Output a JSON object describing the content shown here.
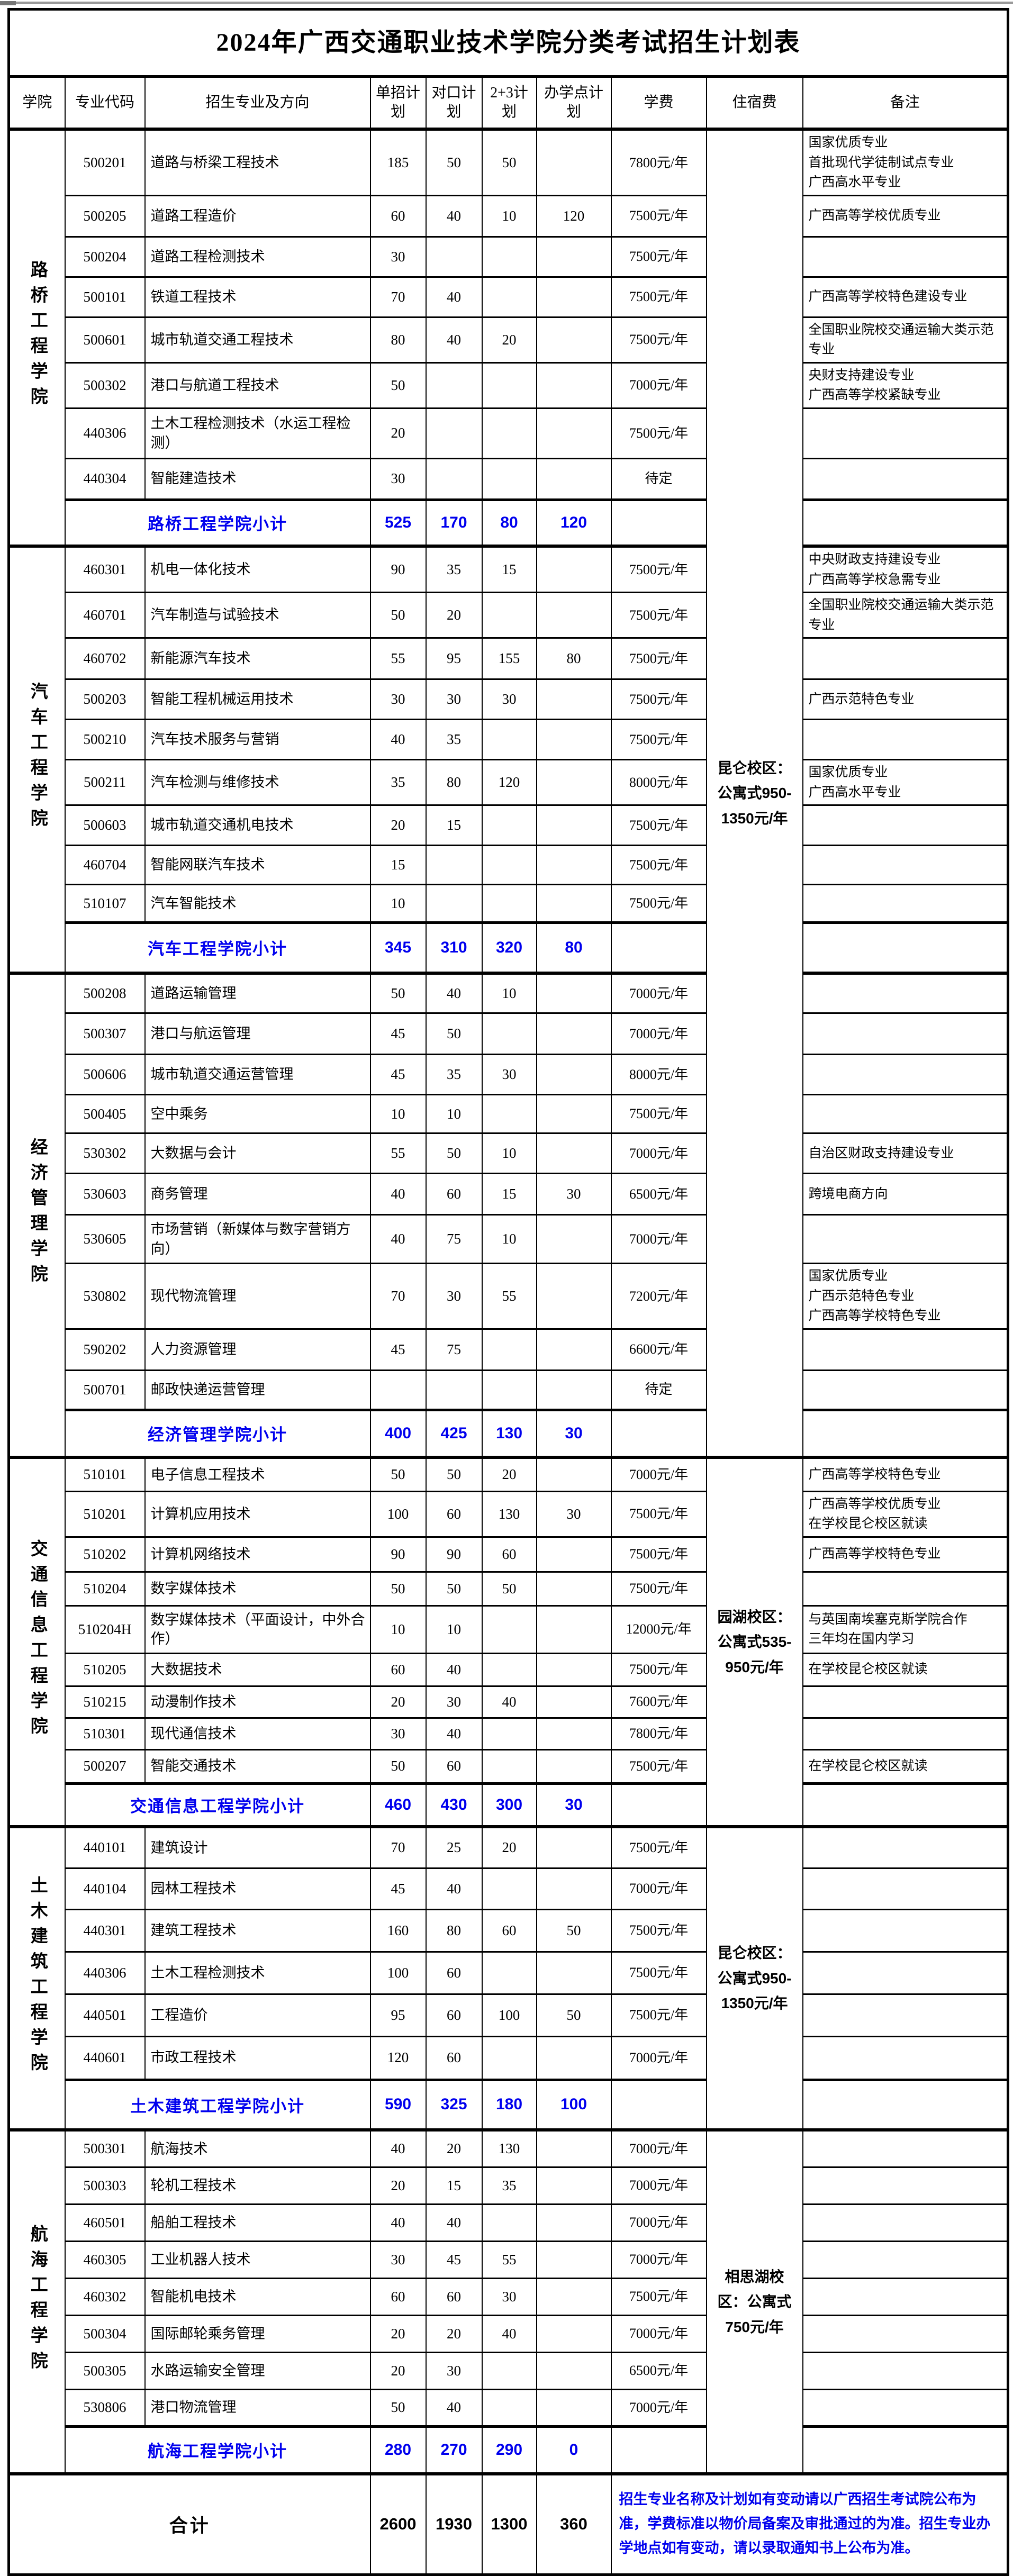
{
  "title": "2024年广西交通职业技术学院分类考试招生计划表",
  "columns": [
    "学院",
    "专业代码",
    "招生专业及方向",
    "单招计划",
    "对口计划",
    "2+3计划",
    "办学点计划",
    "学费",
    "住宿费",
    "备注"
  ],
  "colors": {
    "accent_blue": "#0000ee",
    "border_black": "#000000",
    "top_strip_gray": "#9a9a9a"
  },
  "sections": [
    {
      "college": "路桥工程学院",
      "rows": [
        {
          "code": "500201",
          "major": "道路与桥梁工程技术",
          "dz": "185",
          "dk": "50",
          "p23": "50",
          "bxd": "",
          "fee": "7800元/年",
          "remark": "国家优质专业\n首批现代学徒制试点专业\n广西高水平专业"
        },
        {
          "code": "500205",
          "major": "道路工程造价",
          "dz": "60",
          "dk": "40",
          "p23": "10",
          "bxd": "120",
          "fee": "7500元/年",
          "remark": "广西高等学校优质专业"
        },
        {
          "code": "500204",
          "major": "道路工程检测技术",
          "dz": "30",
          "dk": "",
          "p23": "",
          "bxd": "",
          "fee": "7500元/年",
          "remark": ""
        },
        {
          "code": "500101",
          "major": "铁道工程技术",
          "dz": "70",
          "dk": "40",
          "p23": "",
          "bxd": "",
          "fee": "7500元/年",
          "remark": "广西高等学校特色建设专业"
        },
        {
          "code": "500601",
          "major": "城市轨道交通工程技术",
          "dz": "80",
          "dk": "40",
          "p23": "20",
          "bxd": "",
          "fee": "7500元/年",
          "remark": "全国职业院校交通运输大类示范专业"
        },
        {
          "code": "500302",
          "major": "港口与航道工程技术",
          "dz": "50",
          "dk": "",
          "p23": "",
          "bxd": "",
          "fee": "7000元/年",
          "remark": "央财支持建设专业\n广西高等学校紧缺专业"
        },
        {
          "code": "440306",
          "major": "土木工程检测技术（水运工程检测）",
          "dz": "20",
          "dk": "",
          "p23": "",
          "bxd": "",
          "fee": "7500元/年",
          "remark": ""
        },
        {
          "code": "440304",
          "major": "智能建造技术",
          "dz": "30",
          "dk": "",
          "p23": "",
          "bxd": "",
          "fee": "待定",
          "remark": ""
        }
      ],
      "subtotal": {
        "label": "路桥工程学院小计",
        "values": [
          "525",
          "170",
          "80",
          "120"
        ]
      }
    },
    {
      "college": "汽车工程学院",
      "rows": [
        {
          "code": "460301",
          "major": "机电一体化技术",
          "dz": "90",
          "dk": "35",
          "p23": "15",
          "bxd": "",
          "fee": "7500元/年",
          "remark": "中央财政支持建设专业\n广西高等学校急需专业"
        },
        {
          "code": "460701",
          "major": "汽车制造与试验技术",
          "dz": "50",
          "dk": "20",
          "p23": "",
          "bxd": "",
          "fee": "7500元/年",
          "remark": "全国职业院校交通运输大类示范专业"
        },
        {
          "code": "460702",
          "major": "新能源汽车技术",
          "dz": "55",
          "dk": "95",
          "p23": "155",
          "bxd": "80",
          "fee": "7500元/年",
          "remark": ""
        },
        {
          "code": "500203",
          "major": "智能工程机械运用技术",
          "dz": "30",
          "dk": "30",
          "p23": "30",
          "bxd": "",
          "fee": "7500元/年",
          "remark": "广西示范特色专业"
        },
        {
          "code": "500210",
          "major": "汽车技术服务与营销",
          "dz": "40",
          "dk": "35",
          "p23": "",
          "bxd": "",
          "fee": "7500元/年",
          "remark": ""
        },
        {
          "code": "500211",
          "major": "汽车检测与维修技术",
          "dz": "35",
          "dk": "80",
          "p23": "120",
          "bxd": "",
          "fee": "8000元/年",
          "remark": "国家优质专业\n广西高水平专业"
        },
        {
          "code": "500603",
          "major": "城市轨道交通机电技术",
          "dz": "20",
          "dk": "15",
          "p23": "",
          "bxd": "",
          "fee": "7500元/年",
          "remark": ""
        },
        {
          "code": "460704",
          "major": "智能网联汽车技术",
          "dz": "15",
          "dk": "",
          "p23": "",
          "bxd": "",
          "fee": "7500元/年",
          "remark": ""
        },
        {
          "code": "510107",
          "major": "汽车智能技术",
          "dz": "10",
          "dk": "",
          "p23": "",
          "bxd": "",
          "fee": "7500元/年",
          "remark": ""
        }
      ],
      "subtotal": {
        "label": "汽车工程学院小计",
        "values": [
          "345",
          "310",
          "320",
          "80"
        ]
      }
    },
    {
      "college": "经济管理学院",
      "rows": [
        {
          "code": "500208",
          "major": "道路运输管理",
          "dz": "50",
          "dk": "40",
          "p23": "10",
          "bxd": "",
          "fee": "7000元/年",
          "remark": ""
        },
        {
          "code": "500307",
          "major": "港口与航运管理",
          "dz": "45",
          "dk": "50",
          "p23": "",
          "bxd": "",
          "fee": "7000元/年",
          "remark": ""
        },
        {
          "code": "500606",
          "major": "城市轨道交通运营管理",
          "dz": "45",
          "dk": "35",
          "p23": "30",
          "bxd": "",
          "fee": "8000元/年",
          "remark": ""
        },
        {
          "code": "500405",
          "major": "空中乘务",
          "dz": "10",
          "dk": "10",
          "p23": "",
          "bxd": "",
          "fee": "7500元/年",
          "remark": ""
        },
        {
          "code": "530302",
          "major": "大数据与会计",
          "dz": "55",
          "dk": "50",
          "p23": "10",
          "bxd": "",
          "fee": "7000元/年",
          "remark": "自治区财政支持建设专业"
        },
        {
          "code": "530603",
          "major": "商务管理",
          "dz": "40",
          "dk": "60",
          "p23": "15",
          "bxd": "30",
          "fee": "6500元/年",
          "remark": "跨境电商方向"
        },
        {
          "code": "530605",
          "major": "市场营销（新媒体与数字营销方向）",
          "dz": "40",
          "dk": "75",
          "p23": "10",
          "bxd": "",
          "fee": "7000元/年",
          "remark": ""
        },
        {
          "code": "530802",
          "major": "现代物流管理",
          "dz": "70",
          "dk": "30",
          "p23": "55",
          "bxd": "",
          "fee": "7200元/年",
          "remark": "国家优质专业\n广西示范特色专业\n广西高等学校特色专业"
        },
        {
          "code": "590202",
          "major": "人力资源管理",
          "dz": "45",
          "dk": "75",
          "p23": "",
          "bxd": "",
          "fee": "6600元/年",
          "remark": ""
        },
        {
          "code": "500701",
          "major": "邮政快递运营管理",
          "dz": "",
          "dk": "",
          "p23": "",
          "bxd": "",
          "fee": "待定",
          "remark": ""
        }
      ],
      "subtotal": {
        "label": "经济管理学院小计",
        "values": [
          "400",
          "425",
          "130",
          "30"
        ]
      }
    },
    {
      "college": "交通信息工程学院",
      "rows": [
        {
          "code": "510101",
          "major": "电子信息工程技术",
          "dz": "50",
          "dk": "50",
          "p23": "20",
          "bxd": "",
          "fee": "7000元/年",
          "remark": "广西高等学校特色专业"
        },
        {
          "code": "510201",
          "major": "计算机应用技术",
          "dz": "100",
          "dk": "60",
          "p23": "130",
          "bxd": "30",
          "fee": "7500元/年",
          "remark": "广西高等学校优质专业\n在学校昆仑校区就读"
        },
        {
          "code": "510202",
          "major": "计算机网络技术",
          "dz": "90",
          "dk": "90",
          "p23": "60",
          "bxd": "",
          "fee": "7500元/年",
          "remark": "广西高等学校特色专业"
        },
        {
          "code": "510204",
          "major": "数字媒体技术",
          "dz": "50",
          "dk": "50",
          "p23": "50",
          "bxd": "",
          "fee": "7500元/年",
          "remark": ""
        },
        {
          "code": "510204H",
          "major": "数字媒体技术（平面设计，中外合作）",
          "dz": "10",
          "dk": "10",
          "p23": "",
          "bxd": "",
          "fee": "12000元/年",
          "remark": "与英国南埃塞克斯学院合作\n三年均在国内学习"
        },
        {
          "code": "510205",
          "major": "大数据技术",
          "dz": "60",
          "dk": "40",
          "p23": "",
          "bxd": "",
          "fee": "7500元/年",
          "remark": "在学校昆仑校区就读"
        },
        {
          "code": "510215",
          "major": "动漫制作技术",
          "dz": "20",
          "dk": "30",
          "p23": "40",
          "bxd": "",
          "fee": "7600元/年",
          "remark": ""
        },
        {
          "code": "510301",
          "major": "现代通信技术",
          "dz": "30",
          "dk": "40",
          "p23": "",
          "bxd": "",
          "fee": "7800元/年",
          "remark": ""
        },
        {
          "code": "500207",
          "major": "智能交通技术",
          "dz": "50",
          "dk": "60",
          "p23": "",
          "bxd": "",
          "fee": "7500元/年",
          "remark": "在学校昆仑校区就读"
        }
      ],
      "subtotal": {
        "label": "交通信息工程学院小计",
        "values": [
          "460",
          "430",
          "300",
          "30"
        ]
      }
    },
    {
      "college": "土木建筑工程学院",
      "rows": [
        {
          "code": "440101",
          "major": "建筑设计",
          "dz": "70",
          "dk": "25",
          "p23": "20",
          "bxd": "",
          "fee": "7500元/年",
          "remark": ""
        },
        {
          "code": "440104",
          "major": "园林工程技术",
          "dz": "45",
          "dk": "40",
          "p23": "",
          "bxd": "",
          "fee": "7000元/年",
          "remark": ""
        },
        {
          "code": "440301",
          "major": "建筑工程技术",
          "dz": "160",
          "dk": "80",
          "p23": "60",
          "bxd": "50",
          "fee": "7500元/年",
          "remark": ""
        },
        {
          "code": "440306",
          "major": "土木工程检测技术",
          "dz": "100",
          "dk": "60",
          "p23": "",
          "bxd": "",
          "fee": "7500元/年",
          "remark": ""
        },
        {
          "code": "440501",
          "major": "工程造价",
          "dz": "95",
          "dk": "60",
          "p23": "100",
          "bxd": "50",
          "fee": "7500元/年",
          "remark": ""
        },
        {
          "code": "440601",
          "major": "市政工程技术",
          "dz": "120",
          "dk": "60",
          "p23": "",
          "bxd": "",
          "fee": "7000元/年",
          "remark": ""
        }
      ],
      "subtotal": {
        "label": "土木建筑工程学院小计",
        "values": [
          "590",
          "325",
          "180",
          "100"
        ]
      }
    },
    {
      "college": "航海工程学院",
      "rows": [
        {
          "code": "500301",
          "major": "航海技术",
          "dz": "40",
          "dk": "20",
          "p23": "130",
          "bxd": "",
          "fee": "7000元/年",
          "remark": ""
        },
        {
          "code": "500303",
          "major": "轮机工程技术",
          "dz": "20",
          "dk": "15",
          "p23": "35",
          "bxd": "",
          "fee": "7000元/年",
          "remark": ""
        },
        {
          "code": "460501",
          "major": "船舶工程技术",
          "dz": "40",
          "dk": "40",
          "p23": "",
          "bxd": "",
          "fee": "7000元/年",
          "remark": ""
        },
        {
          "code": "460305",
          "major": "工业机器人技术",
          "dz": "30",
          "dk": "45",
          "p23": "55",
          "bxd": "",
          "fee": "7000元/年",
          "remark": ""
        },
        {
          "code": "460302",
          "major": "智能机电技术",
          "dz": "60",
          "dk": "60",
          "p23": "30",
          "bxd": "",
          "fee": "7500元/年",
          "remark": ""
        },
        {
          "code": "500304",
          "major": "国际邮轮乘务管理",
          "dz": "20",
          "dk": "20",
          "p23": "40",
          "bxd": "",
          "fee": "7000元/年",
          "remark": ""
        },
        {
          "code": "500305",
          "major": "水路运输安全管理",
          "dz": "20",
          "dk": "30",
          "p23": "",
          "bxd": "",
          "fee": "6500元/年",
          "remark": ""
        },
        {
          "code": "530806",
          "major": "港口物流管理",
          "dz": "50",
          "dk": "40",
          "p23": "",
          "bxd": "",
          "fee": "7000元/年",
          "remark": ""
        }
      ],
      "subtotal": {
        "label": "航海工程学院小计",
        "values": [
          "280",
          "270",
          "290",
          "0"
        ]
      }
    }
  ],
  "dorm_spans": [
    {
      "text": "昆仑校区：公寓式950-1350元/年",
      "sections": [
        0,
        1,
        2
      ]
    },
    {
      "text": "园湖校区：公寓式535-950元/年",
      "sections": [
        3
      ]
    },
    {
      "text": "昆仑校区：公寓式950-1350元/年",
      "sections": [
        4
      ]
    },
    {
      "text": "相思湖校区：公寓式750元/年",
      "sections": [
        5
      ]
    }
  ],
  "total": {
    "label": "合计",
    "values": [
      "2600",
      "1930",
      "1300",
      "360"
    ],
    "note": "招生专业名称及计划如有变动请以广西招生考试院公布为准，学费标准以物价局备案及审批通过的为准。招生专业办学地点如有变动，请以录取通知书上公布为准。"
  }
}
